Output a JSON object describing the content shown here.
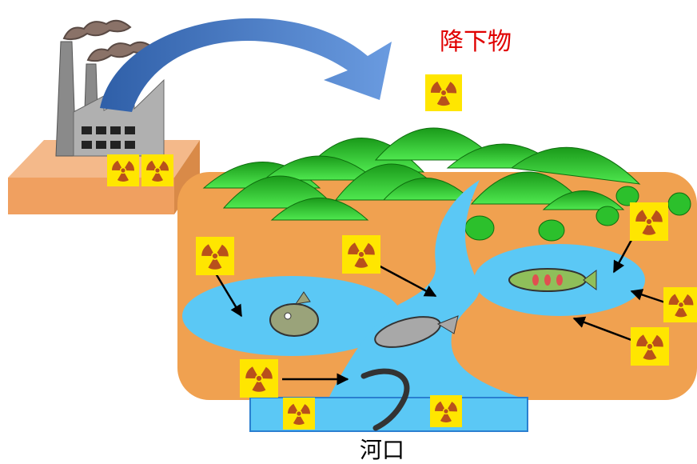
{
  "labels": {
    "fallout": "降下物",
    "estuary": "河口"
  }
}
